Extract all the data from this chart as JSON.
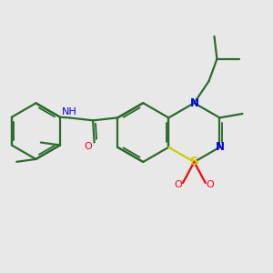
{
  "bg_color": "#e8e8e8",
  "bond_color": "#2d6b2d",
  "N_color": "#0000ee",
  "S_color": "#cccc00",
  "O_color": "#ff0000",
  "line_width": 1.6,
  "font_size": 8.5,
  "fig_size": [
    3.0,
    3.0
  ],
  "dpi": 100,
  "xlim": [
    0,
    10
  ],
  "ylim": [
    0,
    10
  ]
}
